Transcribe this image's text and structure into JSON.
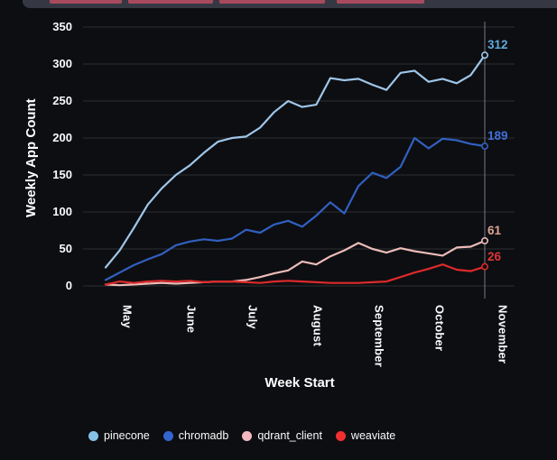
{
  "header": {
    "description": "partially visible row of primary buttons cut off at top edge",
    "bar_color": "#353843",
    "accent_color": "#a84a5e"
  },
  "chart_data": {
    "type": "line",
    "title": "",
    "xlabel": "Week Start",
    "ylabel": "Weekly App Count",
    "x_unit": "week_index",
    "x_count": 28,
    "x_axis": {
      "label": "Week Start",
      "tick_labels": [
        "May",
        "June",
        "July",
        "August",
        "September",
        "October",
        "November"
      ],
      "tick_week_positions": [
        1.54,
        6.1,
        10.47,
        15.1,
        19.47,
        23.78,
        28.28
      ]
    },
    "y_axis": {
      "label": "Weekly App Count",
      "ticks": [
        350,
        300,
        250,
        200,
        150,
        100,
        50,
        0
      ],
      "range": [
        0,
        350
      ]
    },
    "grid": true,
    "legend_position": "bottom",
    "crosshair_at_last_point": true,
    "series": [
      {
        "name": "pinecone",
        "color": "#9fc6e8",
        "legend_color": "#85c1e9",
        "end_value": 312,
        "end_label": "312",
        "end_label_color": "#5fa8dc",
        "values": [
          25,
          48,
          78,
          110,
          132,
          150,
          163,
          180,
          195,
          200,
          202,
          214,
          235,
          250,
          242,
          245,
          281,
          278,
          280,
          272,
          265,
          288,
          291,
          276,
          280,
          274,
          285,
          312
        ]
      },
      {
        "name": "chromadb",
        "color": "#3160c0",
        "legend_color": "#3365cf",
        "end_value": 189,
        "end_label": "189",
        "end_label_color": "#3e6fd9",
        "values": [
          8,
          18,
          28,
          36,
          43,
          55,
          60,
          63,
          61,
          64,
          76,
          72,
          83,
          88,
          80,
          95,
          113,
          98,
          135,
          153,
          146,
          161,
          200,
          186,
          199,
          197,
          192,
          189
        ]
      },
      {
        "name": "qdrant_client",
        "color": "#ecbcb8",
        "legend_color": "#f4b8c0",
        "end_value": 61,
        "end_label": "61",
        "end_label_color": "#dfa294",
        "values": [
          2,
          1,
          2,
          3,
          4,
          3,
          4,
          5,
          6,
          6,
          8,
          12,
          17,
          21,
          33,
          29,
          40,
          48,
          58,
          50,
          45,
          51,
          47,
          44,
          41,
          52,
          53,
          61
        ]
      },
      {
        "name": "weaviate",
        "color": "#dc2a2a",
        "legend_color": "#f03030",
        "end_value": 26,
        "end_label": "26",
        "end_label_color": "#dc3535",
        "values": [
          2,
          6,
          4,
          6,
          7,
          6,
          7,
          5,
          6,
          6,
          5,
          4,
          6,
          7,
          6,
          5,
          4,
          4,
          4,
          5,
          6,
          12,
          18,
          23,
          29,
          22,
          20,
          26
        ]
      }
    ],
    "style": {
      "background": "#0d0e12",
      "grid_color": "rgba(255,255,255,0.13)",
      "crosshair_color": "rgba(190,194,204,0.6)",
      "text_color": "#fafafa"
    }
  }
}
